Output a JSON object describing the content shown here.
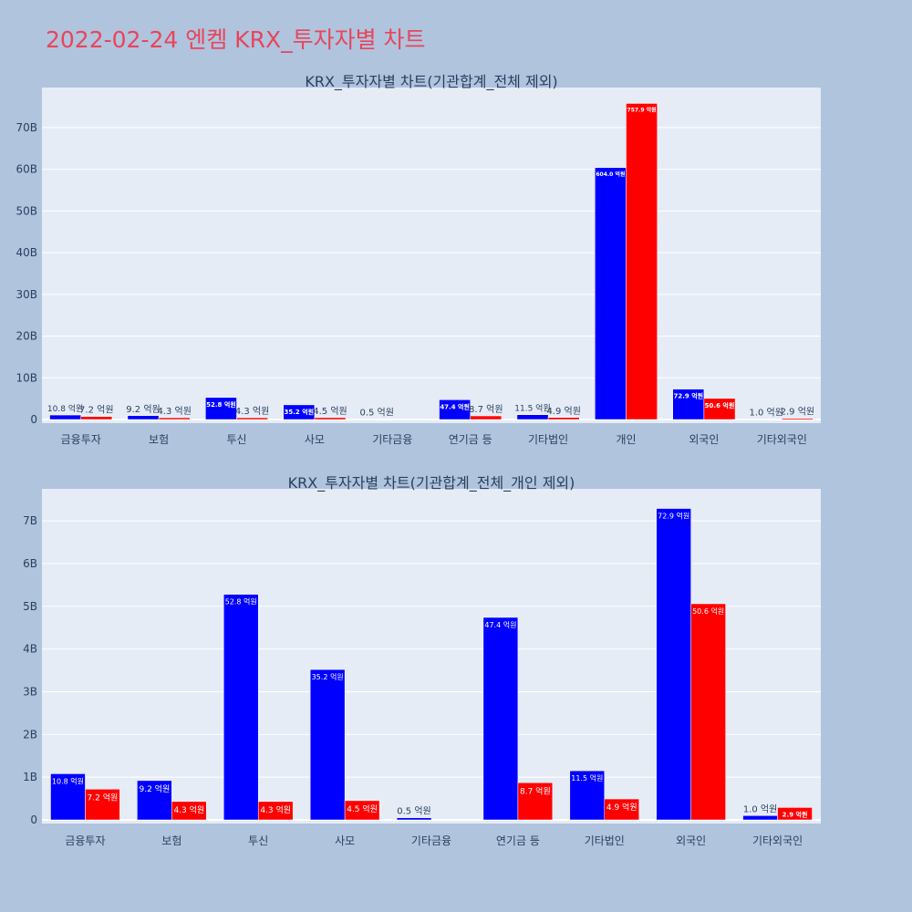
{
  "page": {
    "title": "2022-02-24 엔켐 KRX_투자자별 차트"
  },
  "colors": {
    "buy": "#0000ff",
    "sell": "#ff0000",
    "plot_bg": "#e5ecf6",
    "page_bg": "#b0c4de",
    "title": "#e8455b"
  },
  "chart_data": [
    {
      "type": "bar",
      "title": "KRX_투자자별 차트(기관합계_전체 제외)",
      "categories": [
        "금융투자",
        "보험",
        "투신",
        "사모",
        "기타금융",
        "연기금 등",
        "기타법인",
        "개인",
        "외국인",
        "기타외국인"
      ],
      "series": [
        {
          "values": [
            1.08,
            0.92,
            5.28,
            3.52,
            0.05,
            4.74,
            1.15,
            60.4,
            7.29,
            0.1
          ],
          "labels": [
            "10.8 억원",
            "9.2 억원",
            "52.8 억원",
            "35.2 억원",
            "0.5 억원",
            "47.4 억원",
            "11.5 억원",
            "604.0 억원",
            "72.9 억원",
            "1.0 억원"
          ]
        },
        {
          "values": [
            0.72,
            0.43,
            0.43,
            0.45,
            null,
            0.87,
            0.49,
            75.79,
            5.06,
            0.29
          ],
          "labels": [
            "7.2 억원",
            "4.3 억원",
            "4.3 억원",
            "4.5 억원",
            "",
            "8.7 억원",
            "4.9 억원",
            "757.9 억원",
            "50.6 억원",
            "2.9 억원"
          ]
        }
      ],
      "yticks": [
        0,
        10,
        20,
        30,
        40,
        50,
        60,
        70
      ],
      "ytick_labels": [
        "0",
        "10B",
        "20B",
        "30B",
        "40B",
        "50B",
        "60B",
        "70B"
      ],
      "ylim": [
        0,
        79.6
      ],
      "grid": true
    },
    {
      "type": "bar",
      "title": "KRX_투자자별 차트(기관합계_전체_개인 제외)",
      "categories": [
        "금융투자",
        "보험",
        "투신",
        "사모",
        "기타금융",
        "연기금 등",
        "기타법인",
        "외국인",
        "기타외국인"
      ],
      "series": [
        {
          "values": [
            1.08,
            0.92,
            5.28,
            3.52,
            0.05,
            4.74,
            1.15,
            7.29,
            0.1
          ],
          "labels": [
            "10.8 억원",
            "9.2 억원",
            "52.8 억원",
            "35.2 억원",
            "0.5 억원",
            "47.4 억원",
            "11.5 억원",
            "72.9 억원",
            "1.0 억원"
          ]
        },
        {
          "values": [
            0.72,
            0.43,
            0.43,
            0.45,
            null,
            0.87,
            0.49,
            5.06,
            0.29
          ],
          "labels": [
            "7.2 억원",
            "4.3 억원",
            "4.3 억원",
            "4.5 억원",
            "",
            "8.7 억원",
            "4.9 억원",
            "50.6 억원",
            "2.9 억원"
          ]
        }
      ],
      "yticks": [
        0,
        1,
        2,
        3,
        4,
        5,
        6,
        7
      ],
      "ytick_labels": [
        "0",
        "1B",
        "2B",
        "3B",
        "4B",
        "5B",
        "6B",
        "7B"
      ],
      "ylim": [
        0,
        7.75
      ],
      "grid": true
    }
  ]
}
